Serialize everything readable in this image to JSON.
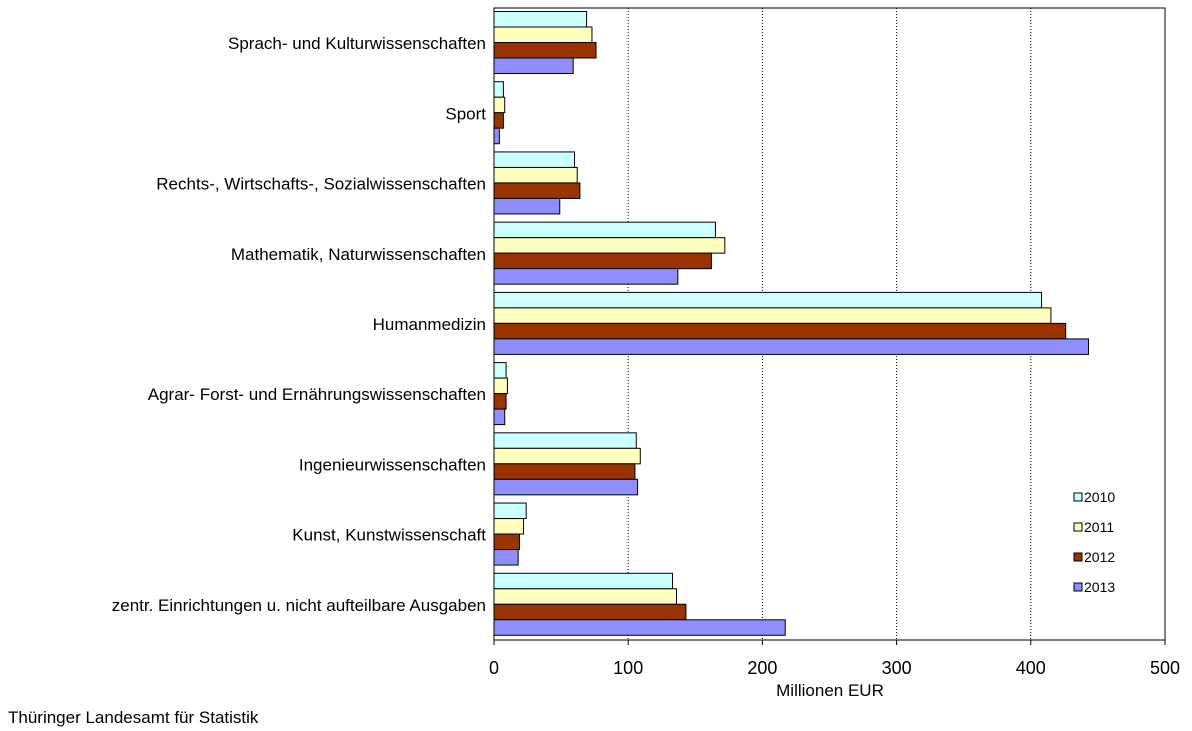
{
  "source_note": "Thüringer Landesamt für Statistik",
  "chart_data": {
    "type": "bar",
    "orientation": "horizontal",
    "title": "",
    "xlabel": "Millionen EUR",
    "ylabel": "",
    "xlim": [
      0,
      500
    ],
    "xticks": [
      0,
      100,
      200,
      300,
      400,
      500
    ],
    "grid": "vertical dashed",
    "legend_position": "right",
    "categories": [
      "Sprach- und Kulturwissenschaften",
      "Sport",
      "Rechts-, Wirtschafts-, Sozialwissenschaften",
      "Mathematik, Naturwissenschaften",
      "Humanmedizin",
      "Agrar- Forst- und Ernährungswissenschaften",
      "Ingenieurwissenschaften",
      "Kunst, Kunstwissenschaft",
      "zentr. Einrichtungen u. nicht aufteilbare Ausgaben"
    ],
    "series": [
      {
        "name": "2010",
        "color": "#ccffff",
        "values": [
          69,
          7,
          60,
          165,
          408,
          9,
          106,
          24,
          133
        ]
      },
      {
        "name": "2011",
        "color": "#ffffc0",
        "values": [
          73,
          8,
          62,
          172,
          415,
          10,
          109,
          22,
          136
        ]
      },
      {
        "name": "2012",
        "color": "#993300",
        "values": [
          76,
          7,
          64,
          162,
          426,
          9,
          105,
          19,
          143
        ]
      },
      {
        "name": "2013",
        "color": "#8f8fff",
        "values": [
          59,
          4,
          49,
          137,
          443,
          8,
          107,
          18,
          217
        ]
      }
    ]
  }
}
